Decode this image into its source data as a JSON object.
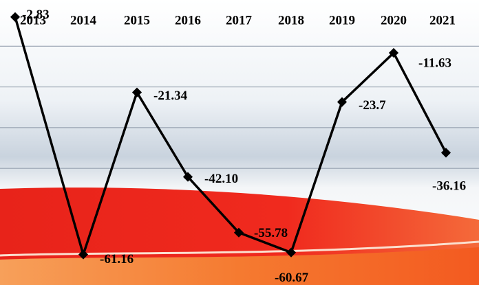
{
  "chart_data": {
    "type": "line",
    "categories": [
      "2013",
      "2014",
      "2015",
      "2016",
      "2017",
      "2018",
      "2019",
      "2020",
      "2021"
    ],
    "values": [
      -2.83,
      -61.16,
      -21.34,
      -42.1,
      -55.78,
      -60.67,
      -23.7,
      -11.63,
      -36.16
    ],
    "value_labels": [
      "-2.83",
      "-61.16",
      "-21.34",
      "-42.10",
      "-55.78",
      "-60.67",
      "-23.7",
      "-11.63",
      "-36.16"
    ],
    "color": "#000000",
    "ylim": [
      -70,
      0
    ],
    "yticks": [
      -10,
      -20,
      -30,
      -40
    ],
    "grid": true
  }
}
